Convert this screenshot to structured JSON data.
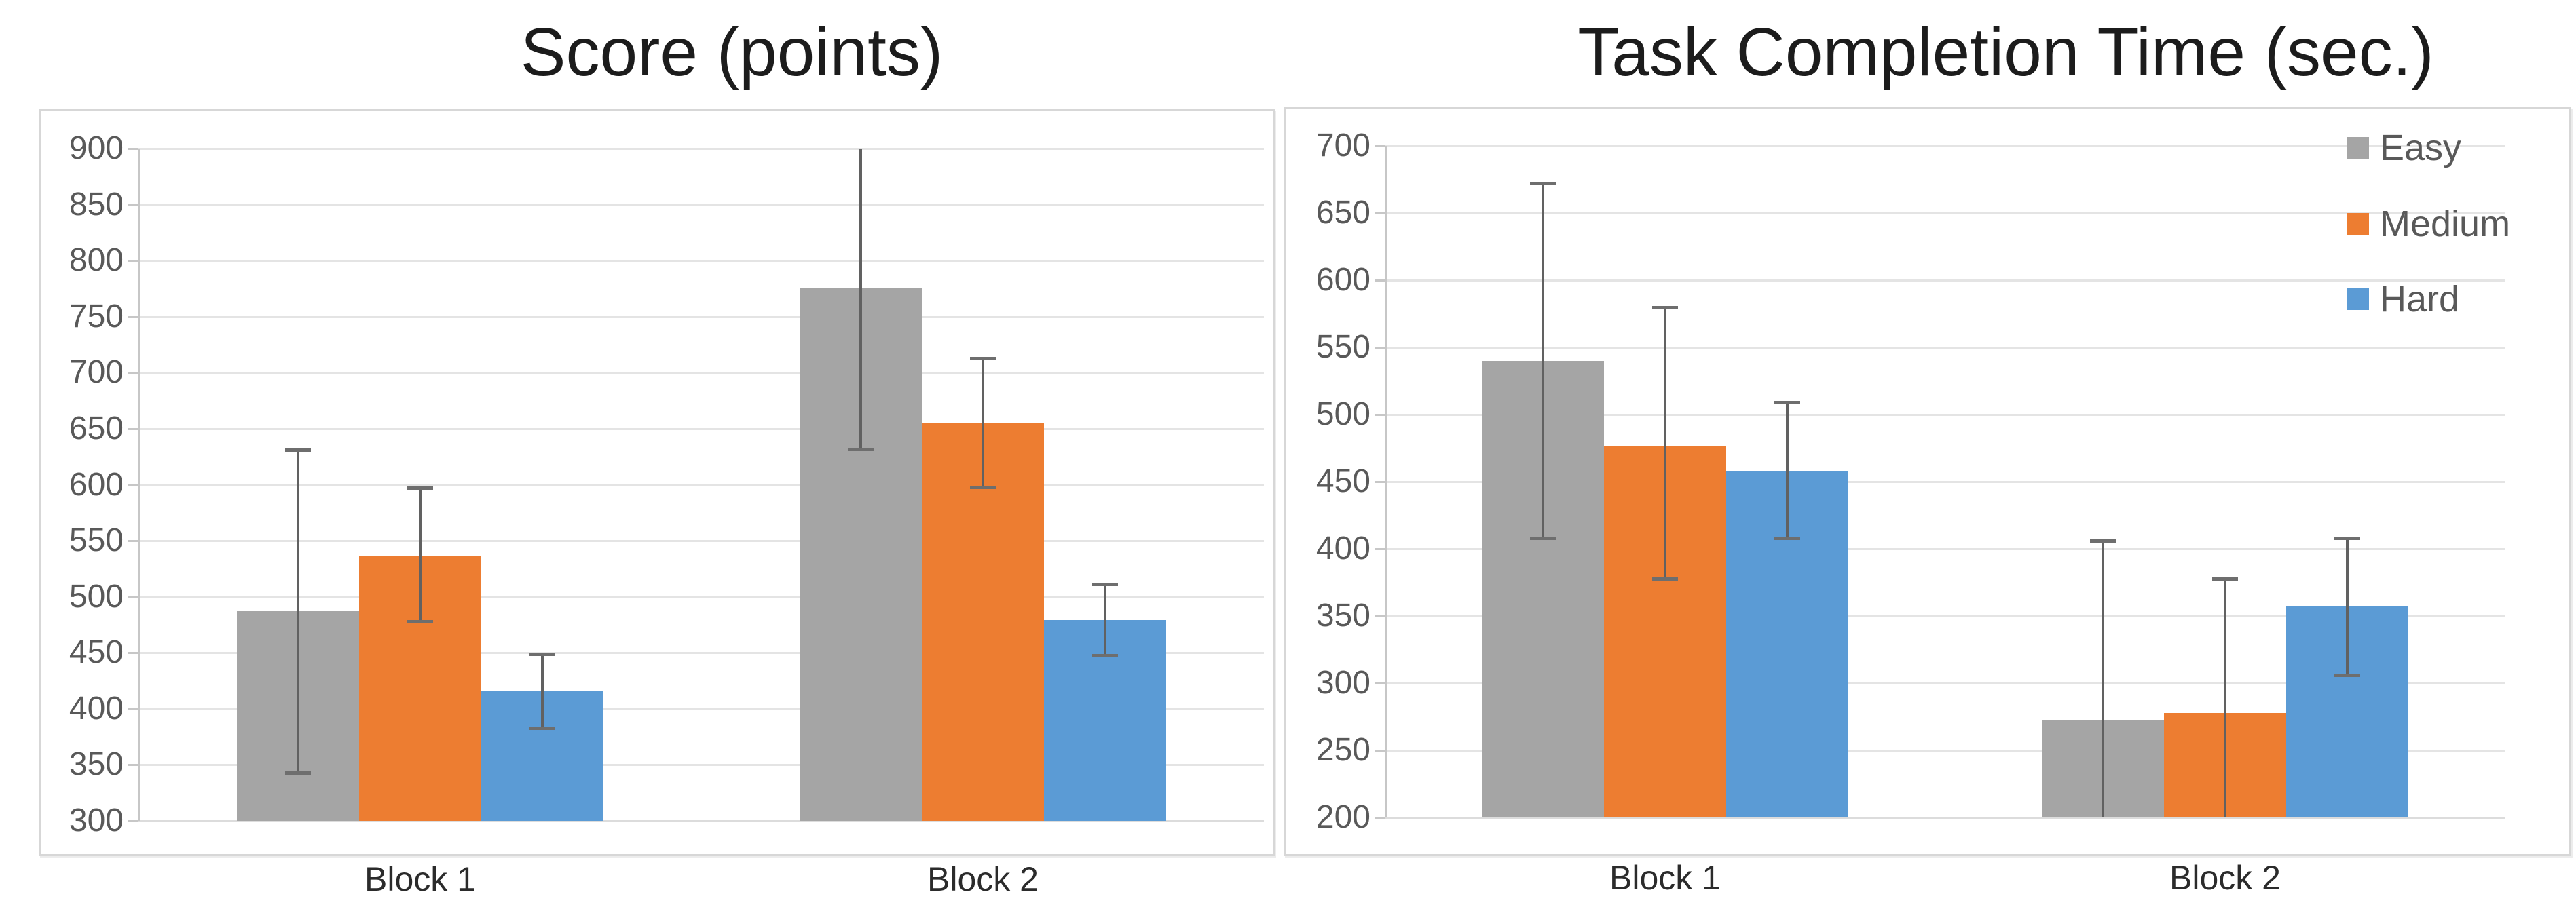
{
  "chart_data": [
    {
      "type": "bar",
      "title": "Score (points)",
      "categories": [
        "Block 1",
        "Block 2"
      ],
      "ylim": [
        300,
        900
      ],
      "ytick_step": 50,
      "yticks": [
        900,
        850,
        800,
        750,
        700,
        650,
        600,
        550,
        500,
        450,
        400,
        350,
        300
      ],
      "grid": true,
      "legend_visible": false,
      "series": [
        {
          "name": "Easy",
          "color": "#a5a5a5",
          "values": [
            487,
            775
          ],
          "error_low": [
            343,
            632
          ],
          "error_high": [
            631,
            917
          ]
        },
        {
          "name": "Medium",
          "color": "#ed7d31",
          "values": [
            537,
            655
          ],
          "error_low": [
            478,
            598
          ],
          "error_high": [
            597,
            713
          ]
        },
        {
          "name": "Hard",
          "color": "#5b9bd5",
          "values": [
            416,
            479
          ],
          "error_low": [
            383,
            448
          ],
          "error_high": [
            449,
            511
          ]
        }
      ]
    },
    {
      "type": "bar",
      "title": "Task Completion Time (sec.)",
      "categories": [
        "Block 1",
        "Block 2"
      ],
      "ylim": [
        200,
        700
      ],
      "ytick_step": 50,
      "yticks": [
        700,
        650,
        600,
        550,
        500,
        450,
        400,
        350,
        300,
        250,
        200
      ],
      "grid": true,
      "legend_visible": true,
      "legend_position": "top-right",
      "legend_items": [
        "Easy",
        "Medium",
        "Hard"
      ],
      "series": [
        {
          "name": "Easy",
          "color": "#a5a5a5",
          "values": [
            540,
            272
          ],
          "error_low": [
            408,
            138
          ],
          "error_high": [
            672,
            406
          ]
        },
        {
          "name": "Medium",
          "color": "#ed7d31",
          "values": [
            477,
            278
          ],
          "error_low": [
            378,
            178
          ],
          "error_high": [
            580,
            378
          ]
        },
        {
          "name": "Hard",
          "color": "#5b9bd5",
          "values": [
            458,
            357
          ],
          "error_low": [
            408,
            306
          ],
          "error_high": [
            509,
            408
          ]
        }
      ]
    }
  ],
  "colors": {
    "easy": "#a5a5a5",
    "medium": "#ed7d31",
    "hard": "#5b9bd5",
    "error_bar": "#616161",
    "gridline": "#e4e4e4",
    "tick_label": "#595959",
    "title_text": "#1c1c1c"
  }
}
